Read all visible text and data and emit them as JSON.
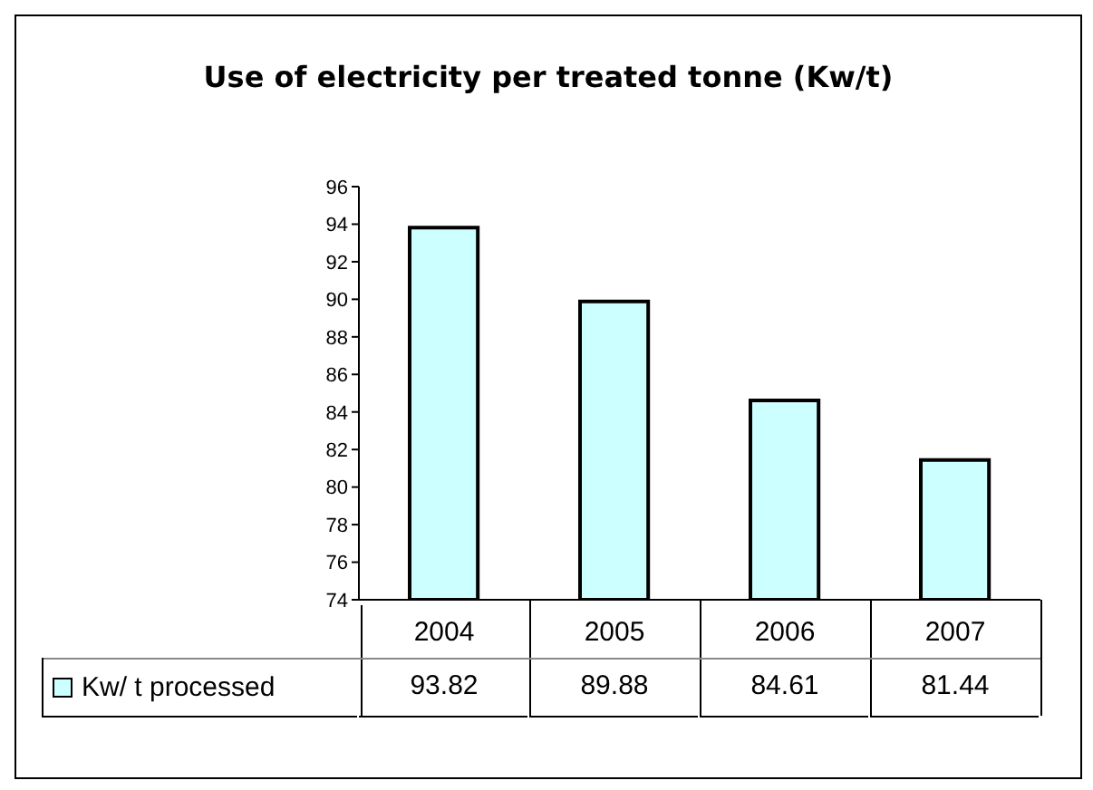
{
  "chart_data": {
    "type": "bar",
    "title": "Use of electricity per treated tonne (Kw/t)",
    "categories": [
      "2004",
      "2005",
      "2006",
      "2007"
    ],
    "series": [
      {
        "name": "Kw/ t processed",
        "color": "#ccffff",
        "values": [
          93.82,
          89.88,
          84.61,
          81.44
        ]
      }
    ],
    "ylim": [
      74,
      96
    ],
    "yticks": [
      74,
      76,
      78,
      80,
      82,
      84,
      86,
      88,
      90,
      92,
      94,
      96
    ],
    "data_labels": true,
    "legend": "bottom left"
  }
}
